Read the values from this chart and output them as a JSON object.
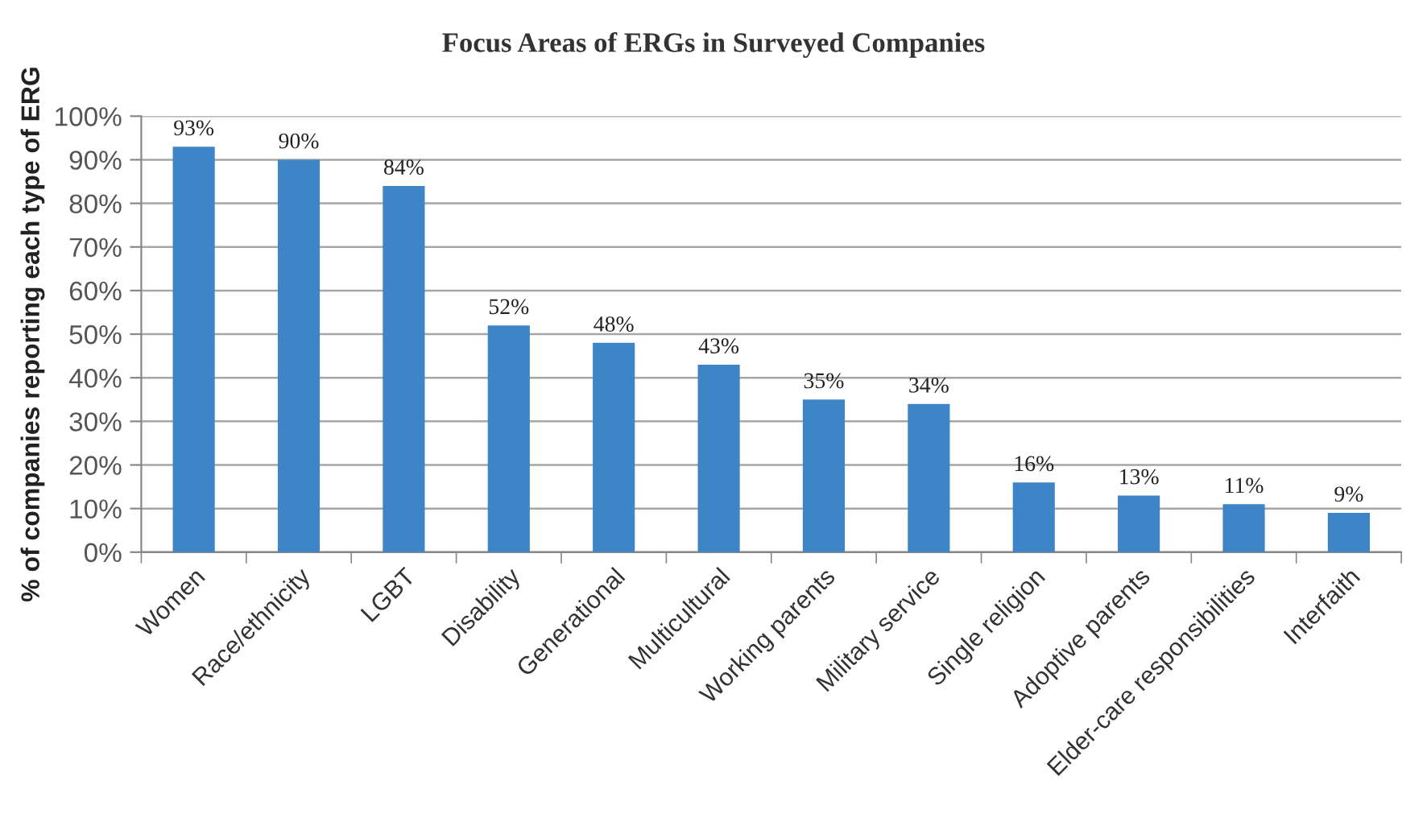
{
  "chart_data": {
    "type": "bar",
    "title": "Focus Areas of ERGs in Surveyed Companies",
    "ylabel": "% of companies reporting each type of ERG",
    "categories": [
      "Women",
      "Race/ethnicity",
      "LGBT",
      "Disability",
      "Generational",
      "Multicultural",
      "Working parents",
      "Military service",
      "Single religion",
      "Adoptive parents",
      "Elder-care responsibilities",
      "Interfaith"
    ],
    "values": [
      93,
      90,
      84,
      52,
      48,
      43,
      35,
      34,
      16,
      13,
      11,
      9
    ],
    "value_labels": [
      "93%",
      "90%",
      "84%",
      "52%",
      "48%",
      "43%",
      "35%",
      "34%",
      "16%",
      "13%",
      "11%",
      "9%"
    ],
    "color": "#3d85c6",
    "ylim": [
      0,
      100
    ],
    "yticks": [
      {
        "value": 0,
        "label": "0%"
      },
      {
        "value": 10,
        "label": "10%"
      },
      {
        "value": 20,
        "label": "20%"
      },
      {
        "value": 30,
        "label": "30%"
      },
      {
        "value": 40,
        "label": "40%"
      },
      {
        "value": 50,
        "label": "50%"
      },
      {
        "value": 60,
        "label": "60%"
      },
      {
        "value": 70,
        "label": "70%"
      },
      {
        "value": 80,
        "label": "80%"
      },
      {
        "value": 90,
        "label": "90%"
      },
      {
        "value": 100,
        "label": "100%"
      }
    ],
    "grid": "y"
  }
}
